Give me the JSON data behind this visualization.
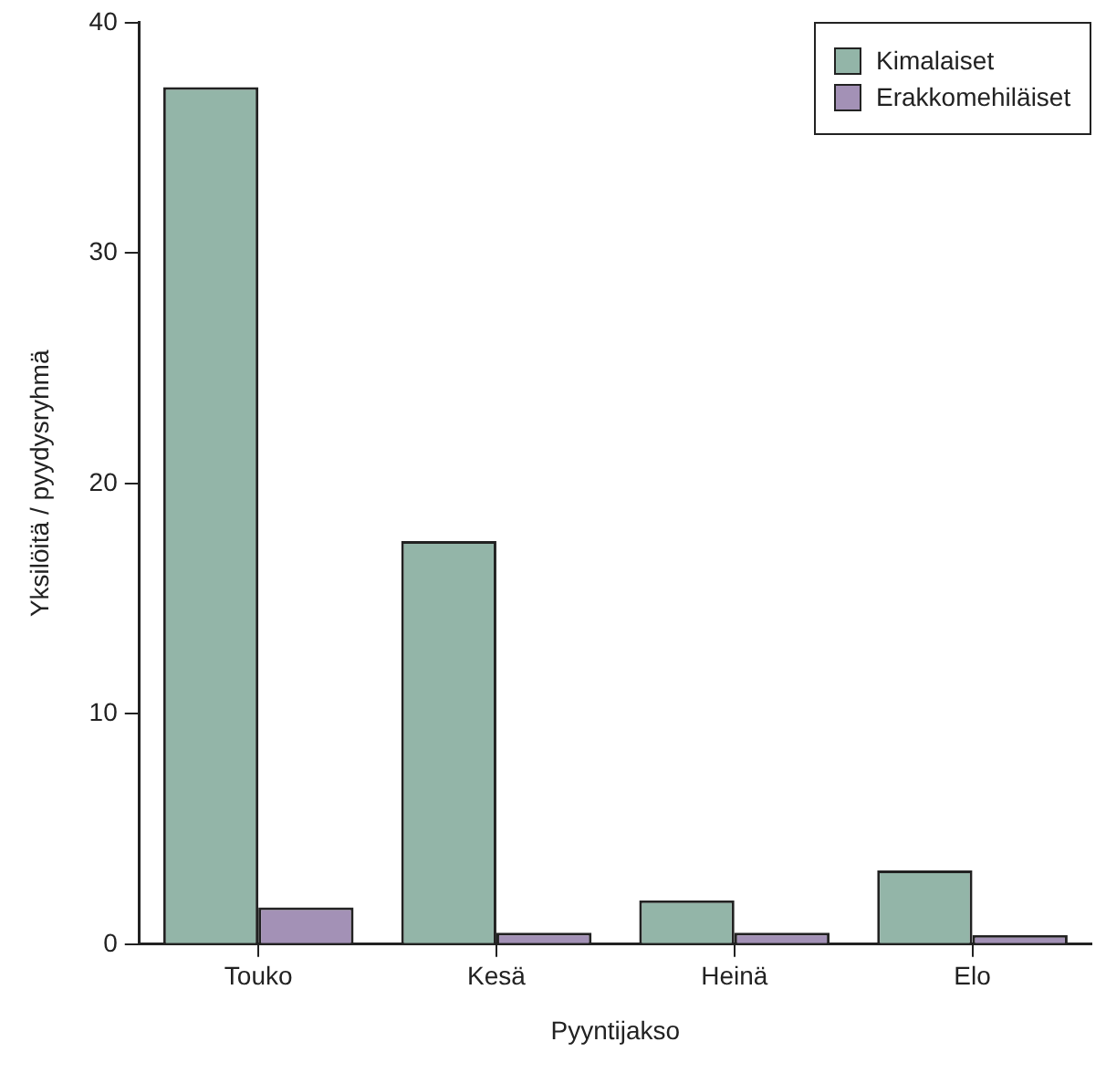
{
  "chart_data": {
    "type": "bar",
    "xlabel": "Pyyntijakso",
    "ylabel": "Yksilöitä / pyydysryhmä",
    "categories": [
      "Touko",
      "Kesä",
      "Heinä",
      "Elo"
    ],
    "series": [
      {
        "name": "Kimalaiset",
        "color": "#93b5a8",
        "values": [
          37.2,
          17.5,
          1.9,
          3.2
        ]
      },
      {
        "name": "Erakkomehiläiset",
        "color": "#a391b6",
        "values": [
          1.6,
          0.5,
          0.5,
          0.4
        ]
      }
    ],
    "ylim": [
      0,
      40
    ],
    "yticks": [
      0,
      10,
      20,
      30,
      40
    ],
    "grid": false,
    "legend": "top right"
  }
}
